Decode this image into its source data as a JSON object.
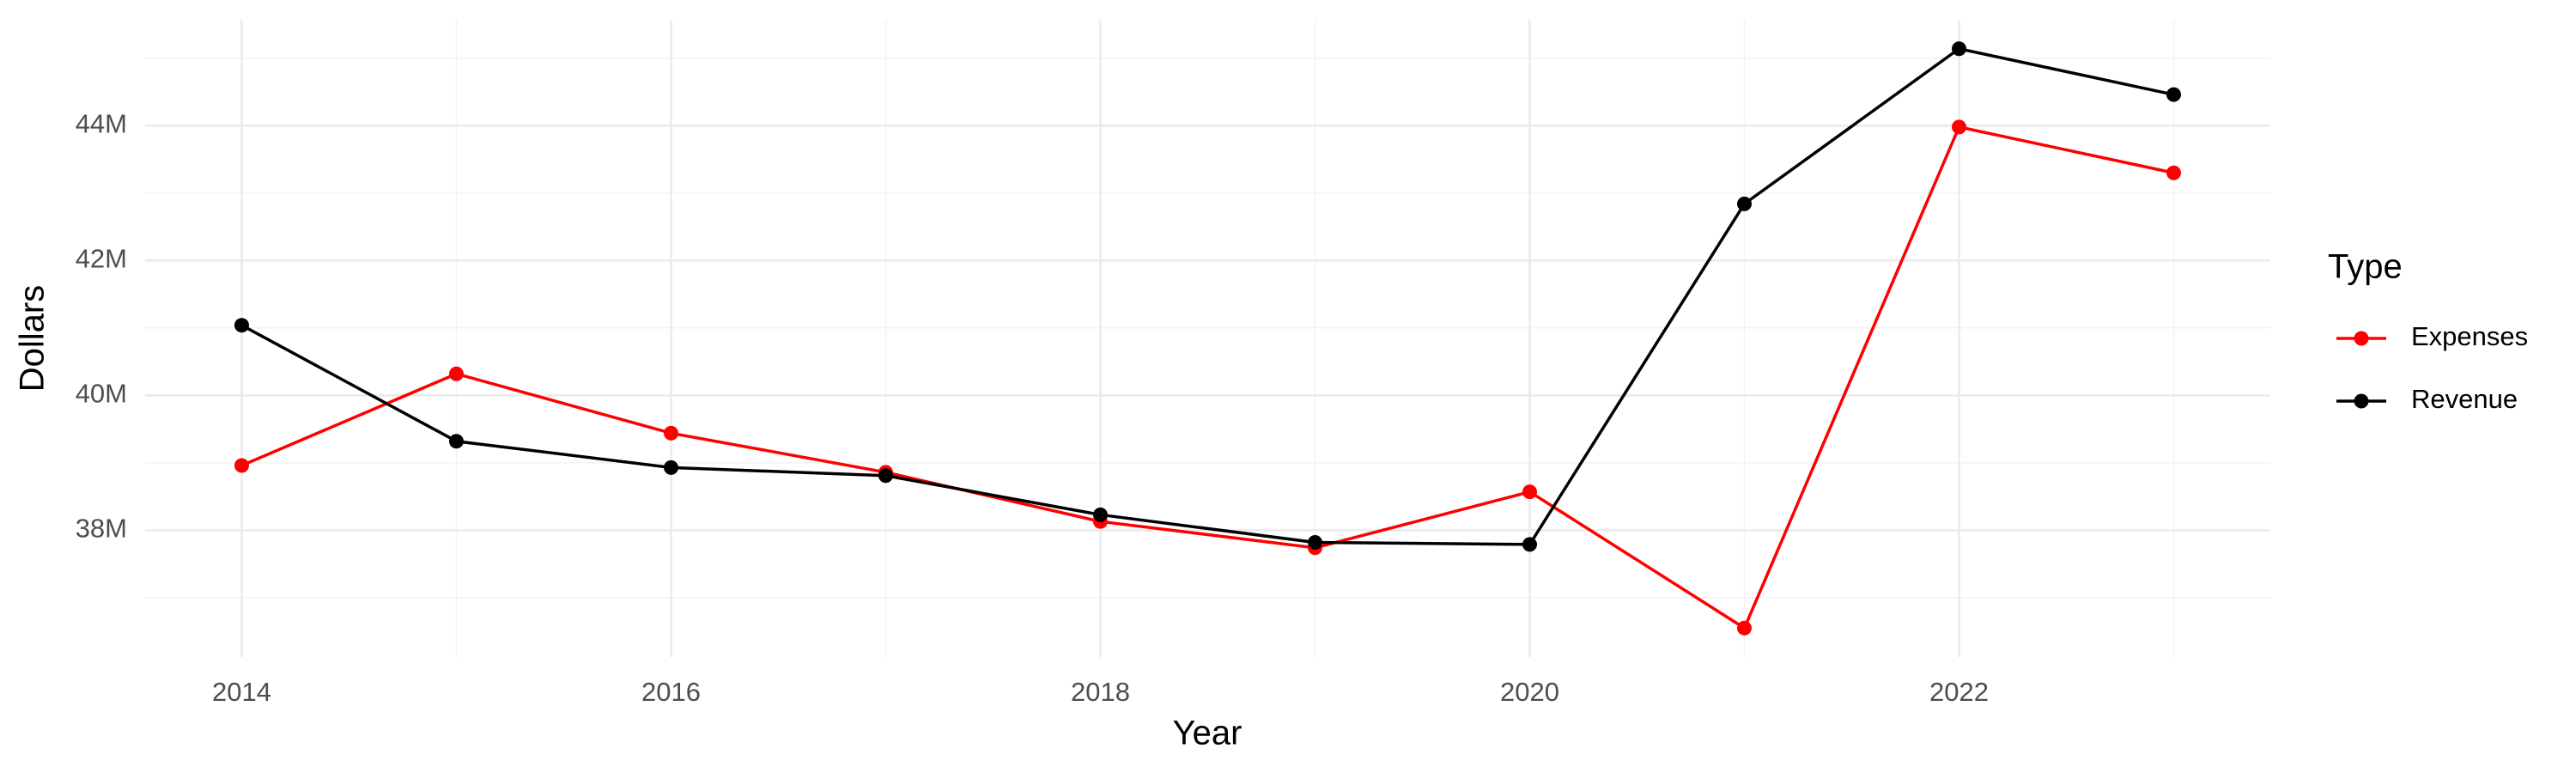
{
  "chart_data": {
    "type": "line",
    "x_label": "Year",
    "y_label": "Dollars",
    "x": [
      2014,
      2015,
      2016,
      2017,
      2018,
      2019,
      2020,
      2021,
      2022,
      2023
    ],
    "series": [
      {
        "name": "Expenses",
        "color": "#ff0000",
        "values": [
          38960000,
          40320000,
          39440000,
          38860000,
          38130000,
          37740000,
          38570000,
          36550000,
          43980000,
          43300000
        ]
      },
      {
        "name": "Revenue",
        "color": "#000000",
        "values": [
          41040000,
          39320000,
          38930000,
          38810000,
          38230000,
          37820000,
          37790000,
          42840000,
          45140000,
          44460000
        ]
      }
    ],
    "xlim": [
      2013.55,
      2023.45
    ],
    "xticks": [
      2014,
      2016,
      2018,
      2020,
      2022
    ],
    "ylim": [
      36120000,
      45570000
    ],
    "yticks": [
      {
        "value": 38000000,
        "label": "38M"
      },
      {
        "value": 40000000,
        "label": "40M"
      },
      {
        "value": 42000000,
        "label": "42M"
      },
      {
        "value": 44000000,
        "label": "44M"
      }
    ],
    "legend_title": "Type",
    "legend": "right",
    "grid": true
  }
}
